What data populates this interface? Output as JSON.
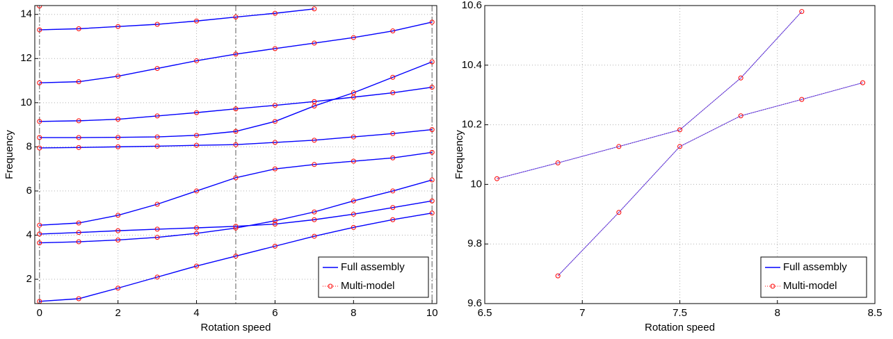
{
  "chart_data": [
    {
      "type": "line",
      "xlabel": "Rotation speed",
      "ylabel": "Frequency",
      "x": [
        0,
        1,
        2,
        3,
        4,
        5,
        6,
        7,
        8,
        9,
        10
      ],
      "series": [
        {
          "values": [
            1.0,
            1.12,
            1.6,
            2.1,
            2.6,
            3.05,
            3.5,
            3.95,
            4.35,
            4.7,
            5.0
          ]
        },
        {
          "values": [
            3.65,
            3.7,
            3.78,
            3.9,
            4.08,
            4.32,
            4.65,
            5.05,
            5.55,
            6.0,
            6.5
          ]
        },
        {
          "values": [
            4.05,
            4.12,
            4.2,
            4.27,
            4.33,
            4.4,
            4.5,
            4.7,
            4.95,
            5.25,
            5.55
          ]
        },
        {
          "values": [
            4.45,
            4.55,
            4.9,
            5.4,
            6.0,
            6.6,
            7.0,
            7.2,
            7.35,
            7.5,
            7.75
          ]
        },
        {
          "values": [
            7.95,
            7.97,
            8.0,
            8.03,
            8.07,
            8.1,
            8.2,
            8.3,
            8.45,
            8.6,
            8.78
          ]
        },
        {
          "values": [
            8.42,
            8.42,
            8.43,
            8.45,
            8.52,
            8.7,
            9.15,
            9.85,
            10.45,
            11.15,
            11.85
          ]
        },
        {
          "values": [
            9.15,
            9.18,
            9.25,
            9.4,
            9.55,
            9.72,
            9.88,
            10.05,
            10.25,
            10.45,
            10.7
          ]
        },
        {
          "values": [
            10.9,
            10.95,
            11.2,
            11.55,
            11.9,
            12.2,
            12.45,
            12.7,
            12.95,
            13.25,
            13.65
          ]
        },
        {
          "values": [
            13.3,
            13.35,
            13.45,
            13.55,
            13.7,
            13.88,
            14.05,
            14.25,
            null,
            null,
            null
          ]
        },
        {
          "values": [
            14.38,
            null,
            null,
            null,
            null,
            null,
            null,
            null,
            null,
            null,
            null
          ]
        }
      ],
      "legend": [
        {
          "name": "Full assembly",
          "color": "#0000ff",
          "marker": "line"
        },
        {
          "name": "Multi-model",
          "color": "#ff0000",
          "marker": "circle"
        }
      ],
      "legend_loc": "lower right",
      "xlim": [
        -0.12,
        10.12
      ],
      "ylim": [
        0.9,
        14.4
      ],
      "xticks": [
        0,
        2,
        4,
        6,
        8,
        10
      ],
      "yticks": [
        2,
        4,
        6,
        8,
        10,
        12,
        14
      ],
      "vlines": [
        0,
        5,
        10
      ],
      "grid": true
    },
    {
      "type": "line",
      "xlabel": "Rotation speed",
      "ylabel": "Frequency",
      "x": [
        6.5625,
        6.875,
        7.1875,
        7.5,
        7.8125,
        8.125,
        8.4375
      ],
      "series": [
        {
          "values": [
            10.019,
            10.072,
            10.127,
            10.183,
            10.357,
            10.58,
            null
          ]
        },
        {
          "values": [
            null,
            9.693,
            9.906,
            10.127,
            10.23,
            10.285,
            10.341
          ]
        }
      ],
      "legend": [
        {
          "name": "Full assembly",
          "color": "#0000ff",
          "marker": "line"
        },
        {
          "name": "Multi-model",
          "color": "#ff0000",
          "marker": "circle"
        }
      ],
      "legend_loc": "lower right",
      "xlim": [
        6.5,
        8.5
      ],
      "ylim": [
        9.6,
        10.6
      ],
      "xticks": [
        6.5,
        7,
        7.5,
        8,
        8.5
      ],
      "yticks": [
        9.6,
        9.8,
        10,
        10.2,
        10.4,
        10.6
      ],
      "grid": true
    }
  ]
}
